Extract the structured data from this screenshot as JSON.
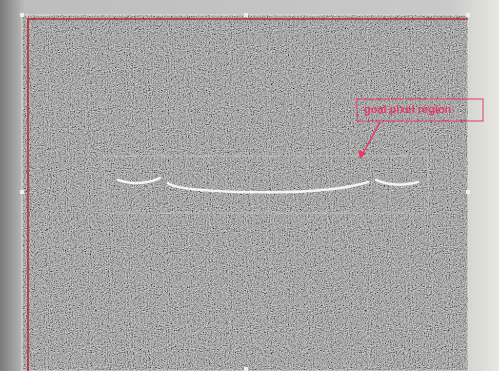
{
  "annotation": {
    "label": "goal pixel region"
  }
}
